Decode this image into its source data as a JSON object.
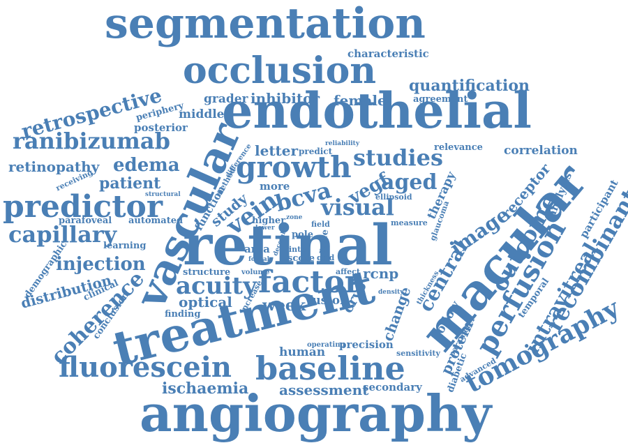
{
  "color": "#4a7fb5",
  "words": [
    {
      "text": "segmentation"
    },
    {
      "text": "occlusion"
    },
    {
      "text": "characteristic"
    },
    {
      "text": "quantification"
    },
    {
      "text": "agreement"
    },
    {
      "text": "endothelial"
    },
    {
      "text": "retrospective"
    },
    {
      "text": "grader"
    },
    {
      "text": "inhibitor"
    },
    {
      "text": "female"
    },
    {
      "text": "periphery"
    },
    {
      "text": "middle"
    },
    {
      "text": "posterior"
    },
    {
      "text": "ranibizumab"
    },
    {
      "text": "vascular"
    },
    {
      "text": "letter"
    },
    {
      "text": "predict"
    },
    {
      "text": "reliability"
    },
    {
      "text": "studies"
    },
    {
      "text": "relevance"
    },
    {
      "text": "correlation"
    },
    {
      "text": "retinopathy"
    },
    {
      "text": "edema"
    },
    {
      "text": "growth"
    },
    {
      "text": "difference"
    },
    {
      "text": "patient"
    },
    {
      "text": "receiving"
    },
    {
      "text": "method"
    },
    {
      "text": "vegf"
    },
    {
      "text": "aged"
    },
    {
      "text": "receptor"
    },
    {
      "text": "predictor"
    },
    {
      "text": "more"
    },
    {
      "text": "bcva"
    },
    {
      "text": "visual"
    },
    {
      "text": "ellipsoid"
    },
    {
      "text": "therapy"
    },
    {
      "text": "macular"
    },
    {
      "text": "analysis"
    },
    {
      "text": "participant"
    },
    {
      "text": "function"
    },
    {
      "text": "study"
    },
    {
      "text": "vein"
    },
    {
      "text": "capillary"
    },
    {
      "text": "parafoveal"
    },
    {
      "text": "automated"
    },
    {
      "text": "retinal"
    },
    {
      "text": "outcome"
    },
    {
      "text": "recombinant"
    },
    {
      "text": "glaucoma"
    },
    {
      "text": "higher"
    },
    {
      "text": "lower"
    },
    {
      "text": "zone"
    },
    {
      "text": "field"
    },
    {
      "text": "pole"
    },
    {
      "text": "score"
    },
    {
      "text": "inter"
    },
    {
      "text": "grid"
    },
    {
      "text": "male"
    },
    {
      "text": "measure"
    },
    {
      "text": "image"
    },
    {
      "text": "perfusion"
    },
    {
      "text": "learning"
    },
    {
      "text": "demographic"
    },
    {
      "text": "injection"
    },
    {
      "text": "area"
    },
    {
      "text": "december"
    },
    {
      "text": "foveal"
    },
    {
      "text": "central"
    },
    {
      "text": "intravitreal"
    },
    {
      "text": "rcnp"
    },
    {
      "text": "structure"
    },
    {
      "text": "volume"
    },
    {
      "text": "affect"
    },
    {
      "text": "distribution"
    },
    {
      "text": "clinical"
    },
    {
      "text": "acuity"
    },
    {
      "text": "factor"
    },
    {
      "text": "tomography"
    },
    {
      "text": "coherence"
    },
    {
      "text": "optical"
    },
    {
      "text": "increase"
    },
    {
      "text": "week"
    },
    {
      "text": "fusion"
    },
    {
      "text": "crvo"
    },
    {
      "text": "change"
    },
    {
      "text": "density"
    },
    {
      "text": "follow"
    },
    {
      "text": "temporal"
    },
    {
      "text": "conclusion"
    },
    {
      "text": "finding"
    },
    {
      "text": "treatment"
    },
    {
      "text": "protein"
    },
    {
      "text": "parameter"
    },
    {
      "text": "human"
    },
    {
      "text": "operating"
    },
    {
      "text": "precision"
    },
    {
      "text": "sensitivity"
    },
    {
      "text": "diabetic"
    },
    {
      "text": "advanced"
    },
    {
      "text": "fluorescein"
    },
    {
      "text": "baseline"
    },
    {
      "text": "ischaemia"
    },
    {
      "text": "assessment"
    },
    {
      "text": "secondary"
    },
    {
      "text": "angiography"
    },
    {
      "text": "structural"
    },
    {
      "text": "thickness"
    }
  ]
}
